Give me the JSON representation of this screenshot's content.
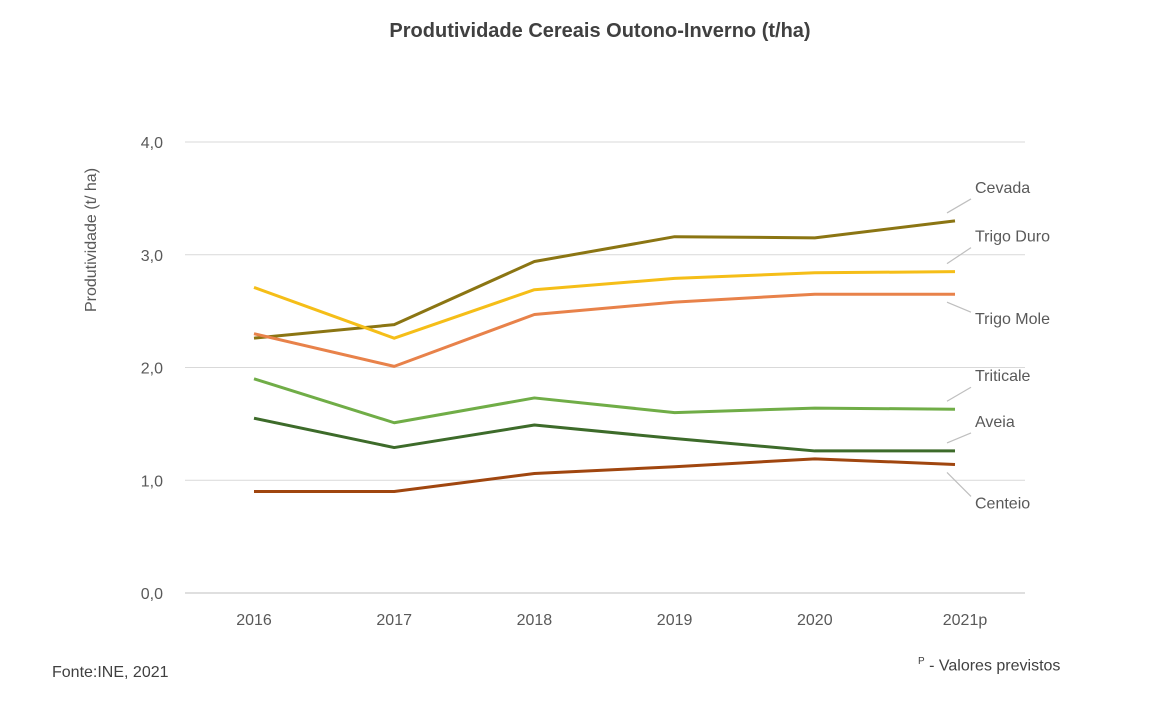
{
  "chart_data": {
    "type": "line",
    "title": "Produtividade Cereais Outono-Inverno (t/ha)",
    "ylabel": "Produtividade  (t/ ha)",
    "xlabel": "",
    "categories": [
      "2016",
      "2017",
      "2018",
      "2019",
      "2020",
      "2021p"
    ],
    "ylim": [
      0,
      4
    ],
    "yticks": [
      "0,0",
      "1,0",
      "2,0",
      "3,0",
      "4,0"
    ],
    "grid": true,
    "legend": "inline labels at right end",
    "series": [
      {
        "name": "Cevada",
        "color": "#8B7513",
        "values": [
          2.26,
          2.38,
          2.94,
          3.16,
          3.15,
          3.3
        ]
      },
      {
        "name": "Trigo Duro",
        "color": "#F5BE18",
        "values": [
          2.71,
          2.26,
          2.69,
          2.79,
          2.84,
          2.85
        ]
      },
      {
        "name": "Trigo Mole",
        "color": "#E8824A",
        "values": [
          2.3,
          2.01,
          2.47,
          2.58,
          2.65,
          2.65
        ]
      },
      {
        "name": "Triticale",
        "color": "#70AD47",
        "values": [
          1.9,
          1.51,
          1.73,
          1.6,
          1.64,
          1.63
        ]
      },
      {
        "name": "Aveia",
        "color": "#3D6B2A",
        "values": [
          1.55,
          1.29,
          1.49,
          1.37,
          1.26,
          1.26
        ]
      },
      {
        "name": "Centeio",
        "color": "#A0460F",
        "values": [
          0.9,
          0.9,
          1.06,
          1.12,
          1.19,
          1.14
        ]
      }
    ]
  },
  "source": "Fonte:INE, 2021",
  "note_marker": "P",
  "note": " - Valores previstos"
}
